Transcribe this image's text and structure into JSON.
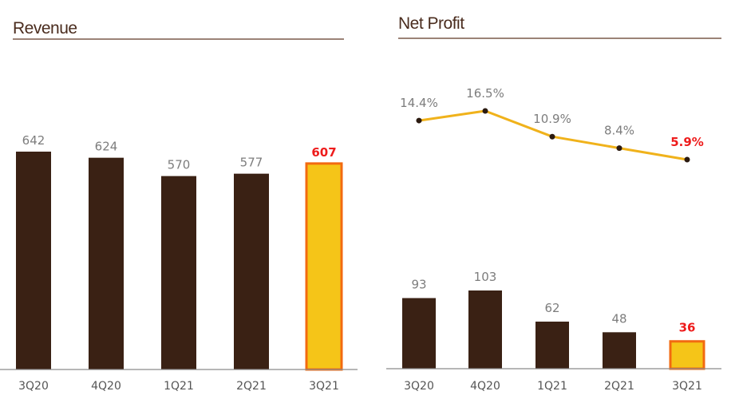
{
  "colors": {
    "bar": "#3a2114",
    "highlight_fill": "#f5c518",
    "highlight_border": "#f26a10",
    "line": "#f0b21b",
    "marker": "#2b1a10",
    "title_rule": "#7a5a4a",
    "axis": "#8a8a8a",
    "highlight_text": "#ee1c1c"
  },
  "chart_data": [
    {
      "type": "bar",
      "title": "Revenue",
      "categories": [
        "3Q20",
        "4Q20",
        "1Q21",
        "2Q21",
        "3Q21"
      ],
      "values": [
        642,
        624,
        570,
        577,
        607
      ],
      "value_labels": [
        "642",
        "624",
        "570",
        "577",
        "607"
      ],
      "highlight_index": 4,
      "grid": false
    },
    {
      "type": "bar+line",
      "title": "Net Profit",
      "categories": [
        "3Q20",
        "4Q20",
        "1Q21",
        "2Q21",
        "3Q21"
      ],
      "series": [
        {
          "type": "bar",
          "values": [
            93,
            103,
            62,
            48,
            36
          ],
          "labels": [
            "93",
            "103",
            "62",
            "48",
            "36"
          ]
        },
        {
          "type": "line",
          "values": [
            14.4,
            16.5,
            10.9,
            8.4,
            5.9
          ],
          "labels": [
            "14.4%",
            "16.5%",
            "10.9%",
            "8.4%",
            "5.9%"
          ]
        }
      ],
      "highlight_index": 4,
      "grid": false
    }
  ]
}
